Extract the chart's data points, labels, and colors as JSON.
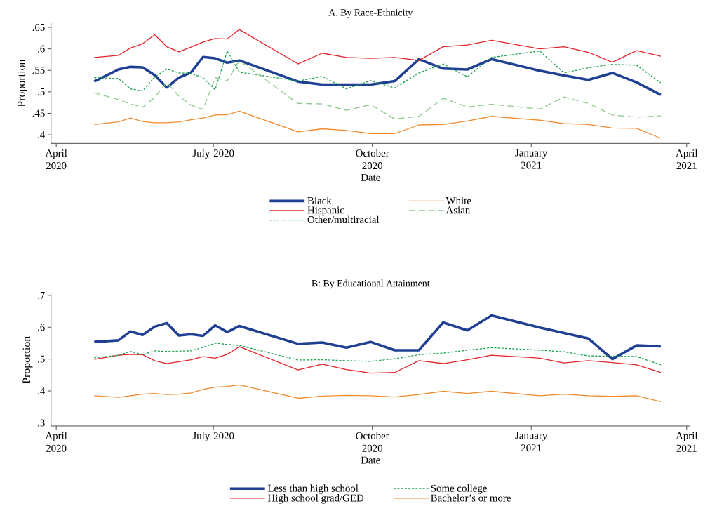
{
  "chart_data": [
    {
      "type": "line",
      "title": "A. By Race-Ethnicity",
      "xlabel": "Date",
      "ylabel": "Proportion",
      "x": [
        "2020-04-23",
        "2020-05-07",
        "2020-05-14",
        "2020-05-21",
        "2020-05-28",
        "2020-06-04",
        "2020-06-11",
        "2020-06-18",
        "2020-06-25",
        "2020-07-02",
        "2020-07-09",
        "2020-07-16",
        "2020-08-19",
        "2020-09-02",
        "2020-09-16",
        "2020-09-30",
        "2020-10-14",
        "2020-10-28",
        "2020-11-11",
        "2020-11-25",
        "2020-12-09",
        "2021-01-06",
        "2021-01-20",
        "2021-02-03",
        "2021-02-17",
        "2021-03-03",
        "2021-03-17"
      ],
      "xlim": [
        "2020-03-29",
        "2021-04-03"
      ],
      "xticks": [
        {
          "value": "2020-04-01",
          "label": "April 2020"
        },
        {
          "value": "2020-07-01",
          "label": "July 2020"
        },
        {
          "value": "2020-10-01",
          "label": "October 2020"
        },
        {
          "value": "2021-01-01",
          "label": "January 2021"
        },
        {
          "value": "2021-04-01",
          "label": "April 2021"
        }
      ],
      "ylim": [
        0.38,
        0.66
      ],
      "yticks": [
        {
          "value": 0.4,
          "label": ".4"
        },
        {
          "value": 0.45,
          "label": ".45"
        },
        {
          "value": 0.5,
          "label": ".5"
        },
        {
          "value": 0.55,
          "label": ".55"
        },
        {
          "value": 0.6,
          "label": ".6"
        },
        {
          "value": 0.65,
          "label": ".65"
        }
      ],
      "legend": "bottom",
      "series": [
        {
          "name": "Black",
          "color": "#1f3f93",
          "line_style": "solid",
          "values": [
            0.524,
            0.552,
            0.558,
            0.557,
            0.539,
            0.51,
            0.533,
            0.545,
            0.581,
            0.578,
            0.568,
            0.573,
            0.524,
            0.517,
            0.517,
            0.517,
            0.525,
            0.576,
            0.554,
            0.552,
            0.576,
            0.549,
            0.538,
            0.528,
            0.544,
            0.522,
            0.493
          ]
        },
        {
          "name": "Hispanic",
          "color": "#e3242b",
          "line_style": "solid",
          "values": [
            0.58,
            0.585,
            0.602,
            0.612,
            0.633,
            0.605,
            0.593,
            0.604,
            0.616,
            0.624,
            0.623,
            0.645,
            0.565,
            0.59,
            0.58,
            0.578,
            0.58,
            0.573,
            0.605,
            0.609,
            0.62,
            0.6,
            0.605,
            0.592,
            0.569,
            0.596,
            0.583
          ]
        },
        {
          "name": "Other/multiracial",
          "color": "#13a04a",
          "line_style": "dotted",
          "values": [
            0.533,
            0.531,
            0.507,
            0.502,
            0.535,
            0.553,
            0.544,
            0.543,
            0.533,
            0.505,
            0.595,
            0.546,
            0.525,
            0.536,
            0.507,
            0.526,
            0.509,
            0.544,
            0.565,
            0.535,
            0.58,
            0.595,
            0.544,
            0.556,
            0.564,
            0.562,
            0.521
          ]
        },
        {
          "name": "White",
          "color": "#f08a2c",
          "line_style": "solid",
          "values": [
            0.424,
            0.43,
            0.439,
            0.431,
            0.428,
            0.428,
            0.43,
            0.435,
            0.439,
            0.446,
            0.447,
            0.455,
            0.407,
            0.414,
            0.41,
            0.403,
            0.403,
            0.423,
            0.424,
            0.432,
            0.443,
            0.434,
            0.426,
            0.424,
            0.416,
            0.415,
            0.392
          ]
        },
        {
          "name": "Asian",
          "color": "#8cc98a",
          "line_style": "dashed",
          "values": [
            0.498,
            0.482,
            0.472,
            0.464,
            0.487,
            0.522,
            0.49,
            0.469,
            0.459,
            0.533,
            0.525,
            0.573,
            0.473,
            0.472,
            0.457,
            0.47,
            0.437,
            0.443,
            0.485,
            0.465,
            0.471,
            0.46,
            0.488,
            0.473,
            0.446,
            0.441,
            0.444
          ]
        }
      ]
    },
    {
      "type": "line",
      "title": "B: By Educational Attainment",
      "xlabel": "Date",
      "ylabel": "Proportion",
      "x": [
        "2020-04-23",
        "2020-05-07",
        "2020-05-14",
        "2020-05-21",
        "2020-05-28",
        "2020-06-04",
        "2020-06-11",
        "2020-06-18",
        "2020-06-25",
        "2020-07-02",
        "2020-07-09",
        "2020-07-16",
        "2020-08-19",
        "2020-09-02",
        "2020-09-16",
        "2020-09-30",
        "2020-10-14",
        "2020-10-28",
        "2020-11-11",
        "2020-11-25",
        "2020-12-09",
        "2021-01-06",
        "2021-01-20",
        "2021-02-03",
        "2021-02-17",
        "2021-03-03",
        "2021-03-17"
      ],
      "xlim": [
        "2020-03-29",
        "2021-04-03"
      ],
      "xticks": [
        {
          "value": "2020-04-01",
          "label": "April 2020"
        },
        {
          "value": "2020-07-01",
          "label": "July 2020"
        },
        {
          "value": "2020-10-01",
          "label": "October 2020"
        },
        {
          "value": "2021-01-01",
          "label": "January 2021"
        },
        {
          "value": "2021-04-01",
          "label": "April 2021"
        }
      ],
      "ylim": [
        0.29,
        0.705
      ],
      "yticks": [
        {
          "value": 0.3,
          "label": ".3"
        },
        {
          "value": 0.4,
          "label": ".4"
        },
        {
          "value": 0.5,
          "label": ".5"
        },
        {
          "value": 0.6,
          "label": ".6"
        },
        {
          "value": 0.7,
          "label": ".7"
        }
      ],
      "legend": "bottom",
      "series": [
        {
          "name": "Less than high school",
          "color": "#1f3f93",
          "line_style": "solid",
          "values": [
            0.554,
            0.559,
            0.587,
            0.576,
            0.602,
            0.613,
            0.574,
            0.578,
            0.573,
            0.606,
            0.585,
            0.604,
            0.548,
            0.552,
            0.536,
            0.554,
            0.528,
            0.528,
            0.615,
            0.59,
            0.637,
            0.599,
            0.582,
            0.565,
            0.5,
            0.543,
            0.54
          ]
        },
        {
          "name": "High school grad/GED",
          "color": "#e3242b",
          "line_style": "solid",
          "values": [
            0.499,
            0.512,
            0.515,
            0.514,
            0.495,
            0.486,
            0.492,
            0.498,
            0.508,
            0.503,
            0.515,
            0.539,
            0.466,
            0.484,
            0.467,
            0.456,
            0.458,
            0.495,
            0.486,
            0.498,
            0.512,
            0.503,
            0.488,
            0.495,
            0.489,
            0.482,
            0.458
          ]
        },
        {
          "name": "Some college",
          "color": "#13a04a",
          "line_style": "dotted",
          "values": [
            0.504,
            0.512,
            0.524,
            0.514,
            0.526,
            0.524,
            0.525,
            0.526,
            0.537,
            0.55,
            0.546,
            0.543,
            0.497,
            0.498,
            0.495,
            0.493,
            0.501,
            0.514,
            0.519,
            0.528,
            0.536,
            0.528,
            0.523,
            0.51,
            0.509,
            0.508,
            0.482
          ]
        },
        {
          "name": "Bachelor’s or more",
          "color": "#f08a2c",
          "line_style": "solid",
          "values": [
            0.385,
            0.38,
            0.385,
            0.39,
            0.392,
            0.389,
            0.39,
            0.394,
            0.405,
            0.412,
            0.414,
            0.419,
            0.377,
            0.384,
            0.386,
            0.385,
            0.381,
            0.389,
            0.399,
            0.392,
            0.399,
            0.385,
            0.39,
            0.385,
            0.383,
            0.385,
            0.366
          ]
        }
      ]
    }
  ]
}
